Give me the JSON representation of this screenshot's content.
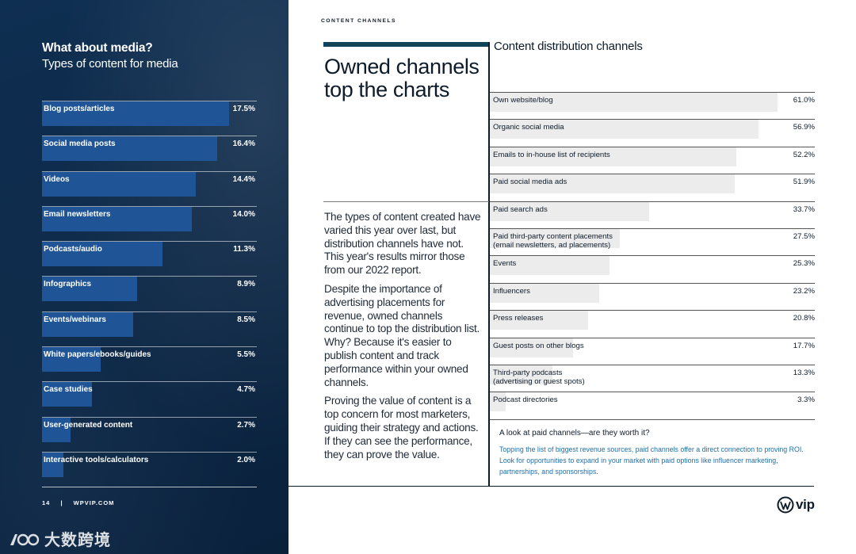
{
  "header": {
    "section_label": "CONTENT CHANNELS"
  },
  "media": {
    "title": "What about media?",
    "subtitle": "Types of content for media",
    "items": [
      {
        "label": "Blog posts/articles",
        "value": "17.5%",
        "pct": 17.5
      },
      {
        "label": "Social media posts",
        "value": "16.4%",
        "pct": 16.4
      },
      {
        "label": "Videos",
        "value": "14.4%",
        "pct": 14.4
      },
      {
        "label": "Email newsletters",
        "value": "14.0%",
        "pct": 14.0
      },
      {
        "label": "Podcasts/audio",
        "value": "11.3%",
        "pct": 11.3
      },
      {
        "label": "Infographics",
        "value": "8.9%",
        "pct": 8.9
      },
      {
        "label": "Events/webinars",
        "value": "8.5%",
        "pct": 8.5
      },
      {
        "label": "White papers/ebooks/guides",
        "value": "5.5%",
        "pct": 5.5
      },
      {
        "label": "Case studies",
        "value": "4.7%",
        "pct": 4.7
      },
      {
        "label": "User-generated content",
        "value": "2.7%",
        "pct": 2.7
      },
      {
        "label": "Interactive tools/calculators",
        "value": "2.0%",
        "pct": 2.0
      }
    ]
  },
  "article": {
    "headline": "Owned channels top the charts",
    "paragraphs": [
      "The types of content created have varied this year over last, but distribution channels have not. This year's results mirror those from our 2022 report.",
      "Despite the importance of advertising placements for revenue, owned channels continue to top the distribution list. Why? Because it's easier to publish content and track performance within your owned channels.",
      "Proving the value of content is a top concern for most marketers, guiding their strategy and actions. If they can see the performance, they can prove the value."
    ]
  },
  "distribution": {
    "title": "Content distribution channels",
    "items": [
      {
        "label": "Own website/blog",
        "value": "61.0%",
        "pct": 61.0
      },
      {
        "label": "Organic social media",
        "value": "56.9%",
        "pct": 56.9
      },
      {
        "label": "Emails to in-house list of recipients",
        "value": "52.2%",
        "pct": 52.2
      },
      {
        "label": "Paid social media ads",
        "value": "51.9%",
        "pct": 51.9
      },
      {
        "label": "Paid search ads",
        "value": "33.7%",
        "pct": 33.7
      },
      {
        "label": "Paid third-party content placements\n(email newsletters, ad placements)",
        "value": "27.5%",
        "pct": 27.5
      },
      {
        "label": "Events",
        "value": "25.3%",
        "pct": 25.3
      },
      {
        "label": "Influencers",
        "value": "23.2%",
        "pct": 23.2
      },
      {
        "label": "Press releases",
        "value": "20.8%",
        "pct": 20.8
      },
      {
        "label": "Guest posts on other blogs",
        "value": "17.7%",
        "pct": 17.7
      },
      {
        "label": "Third-party podcasts\n(advertising or guest spots)",
        "value": "13.3%",
        "pct": 13.3
      },
      {
        "label": "Podcast directories",
        "value": "3.3%",
        "pct": 3.3
      }
    ],
    "note_title": "A look at paid channels—are they worth it?",
    "note_body": "Topping the list of biggest revenue sources, paid channels offer a direct connection to proving ROI. Look for opportunities to expand in your market with paid options like influencer marketing, partnerships, and sponsorships."
  },
  "footer": {
    "page_number": "14",
    "separator": "|",
    "site": "WPVIP.COM"
  },
  "brand": {
    "logo_text": "vip",
    "icon": "wordpress-logo-icon"
  },
  "watermark": {
    "text": "大数跨境",
    "icon": "watermark-logo-icon"
  },
  "colors": {
    "panel_bg": "#0b2746",
    "media_bar": "#1f5596",
    "dist_bar": "#ececec",
    "accent": "#11435a",
    "note_body": "#1f6fa8"
  }
}
